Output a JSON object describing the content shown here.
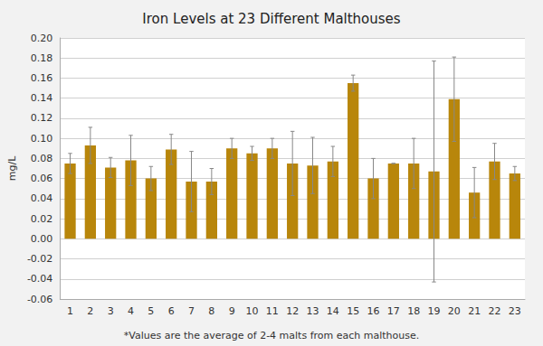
{
  "chart_data": {
    "type": "bar",
    "title": "Iron Levels at 23 Different Malthouses",
    "ylabel": "mg/L",
    "footnote": "*Values are the average of 2-4 malts from each malthouse.",
    "categories": [
      1,
      2,
      3,
      4,
      5,
      6,
      7,
      8,
      9,
      10,
      11,
      12,
      13,
      14,
      15,
      16,
      17,
      18,
      19,
      20,
      21,
      22,
      23
    ],
    "values": [
      0.075,
      0.093,
      0.071,
      0.078,
      0.06,
      0.089,
      0.057,
      0.057,
      0.09,
      0.085,
      0.09,
      0.075,
      0.073,
      0.077,
      0.155,
      0.06,
      0.075,
      0.075,
      0.067,
      0.139,
      0.046,
      0.077,
      0.065
    ],
    "errors": [
      0.01,
      0.018,
      0.01,
      0.025,
      0.012,
      0.015,
      0.03,
      0.013,
      0.01,
      0.007,
      0.01,
      0.032,
      0.028,
      0.015,
      0.008,
      0.02,
      0.0,
      0.025,
      0.11,
      0.042,
      0.025,
      0.018,
      0.007
    ],
    "color": "#B8860B",
    "ylim": [
      -0.06,
      0.2
    ],
    "yticks": [
      -0.06,
      -0.04,
      -0.02,
      {
        "value": 0,
        "label": "0.00"
      },
      0.02,
      0.04,
      0.06,
      0.08,
      {
        "value": 0.1,
        "label": "0.10"
      },
      0.12,
      0.14,
      0.16,
      0.18,
      {
        "value": 0.2,
        "label": "0.20"
      }
    ],
    "grid": true
  }
}
